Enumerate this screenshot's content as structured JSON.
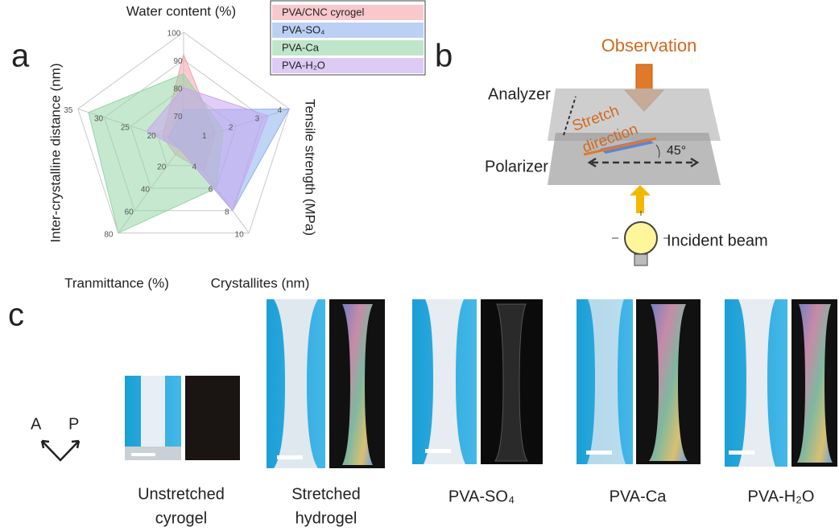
{
  "chart_data": {
    "type": "radar",
    "axes": [
      {
        "label": "Water content (%)",
        "lim": [
          60,
          100
        ],
        "ticks": [
          70,
          80,
          90,
          100
        ]
      },
      {
        "label": "Tensile strength (MPa)",
        "lim": [
          0,
          4
        ],
        "ticks": [
          1,
          2,
          3,
          4
        ]
      },
      {
        "label": "Crystallites (nm)",
        "lim": [
          2,
          10
        ],
        "ticks": [
          4,
          6,
          8,
          10
        ]
      },
      {
        "label": "Tranmittance (%)",
        "lim": [
          0,
          80
        ],
        "ticks": [
          20,
          40,
          60,
          80
        ]
      },
      {
        "label": "Inter-crystalline distance (nm)",
        "lim": [
          15,
          35
        ],
        "ticks": [
          20,
          25,
          30,
          35
        ]
      }
    ],
    "series": [
      {
        "name": "PVA/CNC cyrogel",
        "color": "#f4a3ab",
        "values": [
          92,
          1.2,
          4.5,
          10,
          19
        ]
      },
      {
        "name": "PVA-SO₄",
        "color": "#8db1ec",
        "values": [
          72,
          4,
          8,
          5,
          18
        ]
      },
      {
        "name": "PVA-Ca",
        "color": "#95d6a8",
        "values": [
          85,
          1.5,
          6,
          80,
          33
        ]
      },
      {
        "name": "PVA-H₂O",
        "color": "#c7a6ee",
        "values": [
          80,
          3.2,
          8,
          5,
          22
        ]
      }
    ]
  },
  "panels": {
    "a": "a",
    "b": "b",
    "c": "c"
  },
  "diagram": {
    "observation": "Observation",
    "analyzer": "Analyzer",
    "stretch": [
      "Stretch",
      "direction"
    ],
    "polarizer": "Polarizer",
    "angle": "45°",
    "incident": "Incident beam"
  },
  "photos": {
    "axes": [
      "A",
      "P"
    ],
    "captions": [
      [
        "Unstretched",
        "cyrogel"
      ],
      [
        "Stretched",
        "hydrogel"
      ],
      [
        "PVA-SO₄"
      ],
      [
        "PVA-Ca"
      ],
      [
        "PVA-H₂O"
      ]
    ]
  }
}
